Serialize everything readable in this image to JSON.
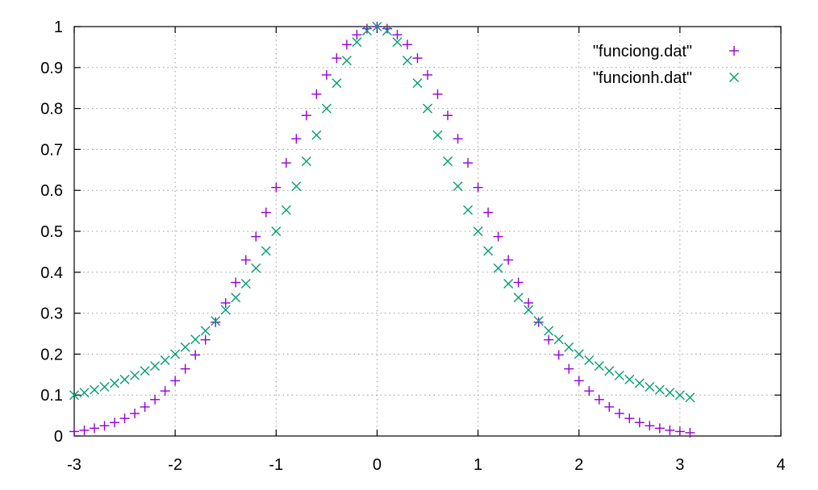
{
  "chart_data": {
    "type": "scatter",
    "title": "",
    "xlabel": "",
    "ylabel": "",
    "xlim": [
      -3,
      4
    ],
    "ylim": [
      0,
      1
    ],
    "xticks": [
      "-3",
      "-2",
      "-1",
      "0",
      "1",
      "2",
      "3",
      "4"
    ],
    "yticks": [
      "0",
      "0.1",
      "0.2",
      "0.3",
      "0.4",
      "0.5",
      "0.6",
      "0.7",
      "0.8",
      "0.9",
      "1"
    ],
    "grid": true,
    "legend_position": "top-right",
    "x": [
      -3.0,
      -2.9,
      -2.8,
      -2.7,
      -2.6,
      -2.5,
      -2.4,
      -2.3,
      -2.2,
      -2.1,
      -2.0,
      -1.9,
      -1.8,
      -1.7,
      -1.6,
      -1.5,
      -1.4,
      -1.3,
      -1.2,
      -1.1,
      -1.0,
      -0.9,
      -0.8,
      -0.7,
      -0.6,
      -0.5,
      -0.4,
      -0.3,
      -0.2,
      -0.1,
      0.0,
      0.1,
      0.2,
      0.3,
      0.4,
      0.5,
      0.6,
      0.7,
      0.8,
      0.9,
      1.0,
      1.1,
      1.2,
      1.3,
      1.4,
      1.5,
      1.6,
      1.7,
      1.8,
      1.9,
      2.0,
      2.1,
      2.2,
      2.3,
      2.4,
      2.5,
      2.6,
      2.7,
      2.8,
      2.9,
      3.0,
      3.1
    ],
    "series": [
      {
        "name": "\"funciong.dat\"",
        "marker": "plus",
        "color": "#9400d3",
        "values": [
          0.011,
          0.014,
          0.019,
          0.025,
          0.033,
          0.043,
          0.055,
          0.071,
          0.089,
          0.11,
          0.135,
          0.164,
          0.198,
          0.235,
          0.278,
          0.325,
          0.375,
          0.43,
          0.487,
          0.546,
          0.607,
          0.667,
          0.726,
          0.783,
          0.835,
          0.882,
          0.923,
          0.956,
          0.98,
          0.995,
          1.0,
          0.995,
          0.98,
          0.956,
          0.923,
          0.882,
          0.835,
          0.783,
          0.726,
          0.667,
          0.607,
          0.546,
          0.487,
          0.43,
          0.375,
          0.325,
          0.278,
          0.235,
          0.198,
          0.164,
          0.135,
          0.11,
          0.089,
          0.071,
          0.055,
          0.043,
          0.033,
          0.025,
          0.019,
          0.014,
          0.011,
          0.008
        ]
      },
      {
        "name": "\"funcionh.dat\"",
        "marker": "cross",
        "color": "#009e73",
        "values": [
          0.1,
          0.106,
          0.113,
          0.12,
          0.129,
          0.138,
          0.148,
          0.159,
          0.171,
          0.185,
          0.2,
          0.217,
          0.236,
          0.257,
          0.281,
          0.308,
          0.338,
          0.372,
          0.41,
          0.452,
          0.5,
          0.552,
          0.61,
          0.671,
          0.735,
          0.8,
          0.862,
          0.917,
          0.962,
          0.99,
          1.0,
          0.99,
          0.962,
          0.917,
          0.862,
          0.8,
          0.735,
          0.671,
          0.61,
          0.552,
          0.5,
          0.452,
          0.41,
          0.372,
          0.338,
          0.308,
          0.281,
          0.257,
          0.236,
          0.217,
          0.2,
          0.185,
          0.171,
          0.159,
          0.148,
          0.138,
          0.129,
          0.12,
          0.113,
          0.106,
          0.1,
          0.094
        ]
      }
    ]
  }
}
